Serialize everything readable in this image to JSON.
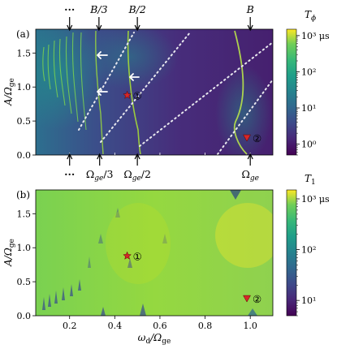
{
  "chart_data": [
    {
      "type": "heatmap",
      "panel_label": "(a)",
      "ylabel": "A/Ω",
      "ylabel_sub": "ge",
      "colorbar_label": "T",
      "colorbar_label_sub": "ϕ",
      "colorbar_ticks": [
        "10³ μs",
        "10²",
        "10¹",
        "10⁰"
      ],
      "colorbar_values": [
        1000,
        100,
        10,
        1
      ],
      "colorbar_scale": "log",
      "colorbar_range": [
        0.5,
        1500
      ],
      "xlim": [
        0.05,
        1.1
      ],
      "ylim": [
        0,
        1.85
      ],
      "yticks": [
        "0.0",
        "0.5",
        "1.0",
        "1.5"
      ],
      "ytick_values": [
        0,
        0.5,
        1.0,
        1.5
      ],
      "top_annotations": [
        {
          "text": "···",
          "x": 0.2
        },
        {
          "text": "B/3",
          "x": 0.33
        },
        {
          "text": "B/2",
          "x": 0.5
        },
        {
          "text": "B",
          "x": 1.0
        }
      ],
      "bottom_annotations": [
        {
          "text": "···",
          "x": 0.2
        },
        {
          "text": "Ω",
          "sub": "ge",
          "suffix": "/3",
          "x": 0.333
        },
        {
          "text": "Ω",
          "sub": "ge",
          "suffix": "/2",
          "x": 0.5
        },
        {
          "text": "Ω",
          "sub": "ge",
          "suffix": "",
          "x": 1.0
        }
      ],
      "markers": [
        {
          "symbol": "star",
          "label": "①",
          "x": 0.455,
          "y": 0.88,
          "color": "#d62728"
        },
        {
          "symbol": "triangle",
          "label": "②",
          "x": 0.985,
          "y": 0.25,
          "color": "#d62728"
        }
      ],
      "grid": false
    },
    {
      "type": "heatmap",
      "panel_label": "(b)",
      "xlabel": "ω",
      "xlabel_sub": "d",
      "xlabel_suffix": "/Ω",
      "xlabel_suffix_sub": "ge",
      "ylabel": "A/Ω",
      "ylabel_sub": "ge",
      "colorbar_label": "T",
      "colorbar_label_sub": "1",
      "colorbar_ticks": [
        "10³ μs",
        "10²",
        "10¹"
      ],
      "colorbar_values": [
        1000,
        100,
        10
      ],
      "colorbar_scale": "log",
      "colorbar_range": [
        5,
        1500
      ],
      "xlim": [
        0.05,
        1.1
      ],
      "ylim": [
        0,
        1.85
      ],
      "xticks": [
        "0.2",
        "0.4",
        "0.6",
        "0.8",
        "1.0"
      ],
      "xtick_values": [
        0.2,
        0.4,
        0.6,
        0.8,
        1.0
      ],
      "yticks": [
        "0.0",
        "0.5",
        "1.0",
        "1.5"
      ],
      "ytick_values": [
        0,
        0.5,
        1.0,
        1.5
      ],
      "markers": [
        {
          "symbol": "star",
          "label": "①",
          "x": 0.455,
          "y": 0.88,
          "color": "#d62728"
        },
        {
          "symbol": "triangle",
          "label": "②",
          "x": 0.985,
          "y": 0.25,
          "color": "#d62728"
        }
      ],
      "grid": false
    }
  ],
  "colors": {
    "viridis_dark": "#440154",
    "viridis_mid": "#21918c",
    "viridis_bright": "#fde725",
    "panel_b_base": "#8fd14f",
    "marker": "#d62728",
    "arrow": "#ffffff"
  }
}
